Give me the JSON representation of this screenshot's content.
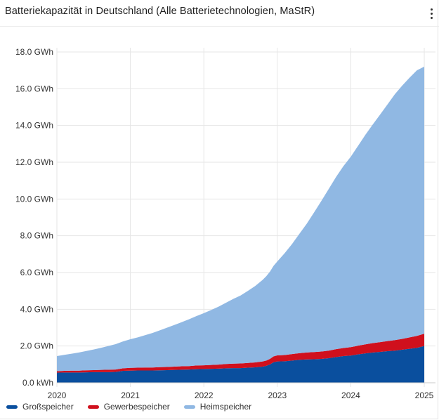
{
  "header": {
    "title": "Batteriekapazität in Deutschland (Alle Batterietechnologien, MaStR)",
    "menu_icon": "more-vertical-icon"
  },
  "colors": {
    "gross": "#0a4f9e",
    "gewerbe": "#d0101d",
    "heim": "#90b8e3",
    "grid": "#e6e6e6"
  },
  "chart_data": {
    "type": "area",
    "stacked": true,
    "title": "Batteriekapazität in Deutschland (Alle Batterietechnologien, MaStR)",
    "x_unit": "year",
    "xlim": [
      2020.0,
      2025.0
    ],
    "ylim": [
      0,
      18
    ],
    "y_ticks": [
      0,
      2,
      4,
      6,
      8,
      10,
      12,
      14,
      16,
      18
    ],
    "y_tick_labels": [
      "0.0 kWh",
      "2.0 GWh",
      "4.0 GWh",
      "6.0 GWh",
      "8.0 GWh",
      "10.0 GWh",
      "12.0 GWh",
      "14.0 GWh",
      "16.0 GWh",
      "18.0 GWh"
    ],
    "x_ticks": [
      2020,
      2021,
      2022,
      2023,
      2024,
      2025
    ],
    "x_tick_labels": [
      "2020",
      "2021",
      "2022",
      "2023",
      "2024",
      "2025"
    ],
    "grid": true,
    "legend_position": "bottom-left",
    "x": [
      2020.0,
      2020.1,
      2020.2,
      2020.3,
      2020.4,
      2020.5,
      2020.6,
      2020.7,
      2020.8,
      2020.9,
      2021.0,
      2021.1,
      2021.2,
      2021.3,
      2021.4,
      2021.5,
      2021.6,
      2021.7,
      2021.8,
      2021.9,
      2022.0,
      2022.1,
      2022.2,
      2022.3,
      2022.4,
      2022.5,
      2022.6,
      2022.7,
      2022.8,
      2022.85,
      2022.9,
      2022.95,
      2023.0,
      2023.1,
      2023.2,
      2023.3,
      2023.4,
      2023.5,
      2023.6,
      2023.7,
      2023.8,
      2023.9,
      2024.0,
      2024.1,
      2024.2,
      2024.3,
      2024.4,
      2024.5,
      2024.6,
      2024.7,
      2024.8,
      2024.9,
      2025.0
    ],
    "series": [
      {
        "name": "Großspeicher",
        "values": [
          0.55,
          0.56,
          0.56,
          0.56,
          0.57,
          0.58,
          0.58,
          0.58,
          0.59,
          0.65,
          0.66,
          0.67,
          0.67,
          0.67,
          0.68,
          0.69,
          0.7,
          0.71,
          0.72,
          0.74,
          0.75,
          0.76,
          0.77,
          0.79,
          0.8,
          0.8,
          0.82,
          0.84,
          0.88,
          0.92,
          1.0,
          1.12,
          1.16,
          1.17,
          1.21,
          1.25,
          1.27,
          1.28,
          1.3,
          1.34,
          1.4,
          1.45,
          1.48,
          1.55,
          1.6,
          1.65,
          1.68,
          1.72,
          1.75,
          1.8,
          1.85,
          1.9,
          2.0
        ]
      },
      {
        "name": "Gewerbespeicher",
        "values": [
          0.08,
          0.09,
          0.1,
          0.1,
          0.11,
          0.11,
          0.12,
          0.13,
          0.13,
          0.14,
          0.15,
          0.15,
          0.16,
          0.16,
          0.17,
          0.17,
          0.18,
          0.19,
          0.19,
          0.2,
          0.2,
          0.21,
          0.22,
          0.23,
          0.24,
          0.25,
          0.26,
          0.27,
          0.28,
          0.29,
          0.3,
          0.32,
          0.33,
          0.34,
          0.35,
          0.36,
          0.38,
          0.39,
          0.4,
          0.41,
          0.43,
          0.44,
          0.46,
          0.47,
          0.49,
          0.51,
          0.53,
          0.55,
          0.57,
          0.59,
          0.62,
          0.65,
          0.67
        ]
      },
      {
        "name": "Heimspeicher",
        "values": [
          0.82,
          0.87,
          0.92,
          0.99,
          1.05,
          1.12,
          1.2,
          1.29,
          1.38,
          1.46,
          1.56,
          1.65,
          1.76,
          1.88,
          2.0,
          2.14,
          2.27,
          2.4,
          2.55,
          2.69,
          2.84,
          2.99,
          3.15,
          3.33,
          3.52,
          3.7,
          3.92,
          4.16,
          4.44,
          4.59,
          4.75,
          4.93,
          5.11,
          5.54,
          5.99,
          6.49,
          7.0,
          7.6,
          8.2,
          8.8,
          9.37,
          9.9,
          10.36,
          10.88,
          11.41,
          11.9,
          12.39,
          12.88,
          13.38,
          13.78,
          14.13,
          14.45,
          14.53
        ]
      }
    ]
  },
  "legend": {
    "items": [
      {
        "label": "Großspeicher",
        "color": "#0a4f9e"
      },
      {
        "label": "Gewerbespeicher",
        "color": "#d0101d"
      },
      {
        "label": "Heimspeicher",
        "color": "#90b8e3"
      }
    ]
  }
}
